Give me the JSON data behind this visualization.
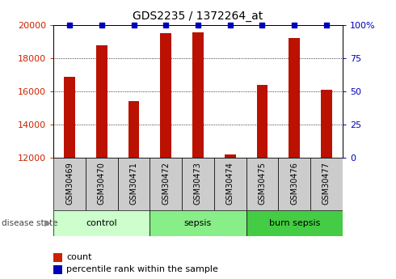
{
  "title": "GDS2235 / 1372264_at",
  "samples": [
    "GSM30469",
    "GSM30470",
    "GSM30471",
    "GSM30472",
    "GSM30473",
    "GSM30474",
    "GSM30475",
    "GSM30476",
    "GSM30477"
  ],
  "counts": [
    16900,
    18800,
    15400,
    19500,
    19550,
    12200,
    16400,
    19200,
    16100
  ],
  "percentile_ranks": [
    100,
    100,
    100,
    100,
    100,
    100,
    100,
    100,
    100
  ],
  "ylim_left": [
    12000,
    20000
  ],
  "ylim_right": [
    0,
    100
  ],
  "yticks_left": [
    12000,
    14000,
    16000,
    18000,
    20000
  ],
  "yticks_right": [
    0,
    25,
    50,
    75,
    100
  ],
  "bar_color": "#bb1100",
  "dot_color": "#0000bb",
  "bar_width": 0.35,
  "tick_label_color_left": "#cc2200",
  "tick_label_color_right": "#0000bb",
  "disease_state_label": "disease state",
  "group_defs": [
    {
      "start": 0,
      "end": 2,
      "label": "control",
      "color": "#ccffcc"
    },
    {
      "start": 3,
      "end": 5,
      "label": "sepsis",
      "color": "#88ee88"
    },
    {
      "start": 6,
      "end": 8,
      "label": "burn sepsis",
      "color": "#44cc44"
    }
  ],
  "sample_box_color": "#cccccc",
  "legend_count_color": "#cc2200",
  "legend_percentile_color": "#0000bb"
}
